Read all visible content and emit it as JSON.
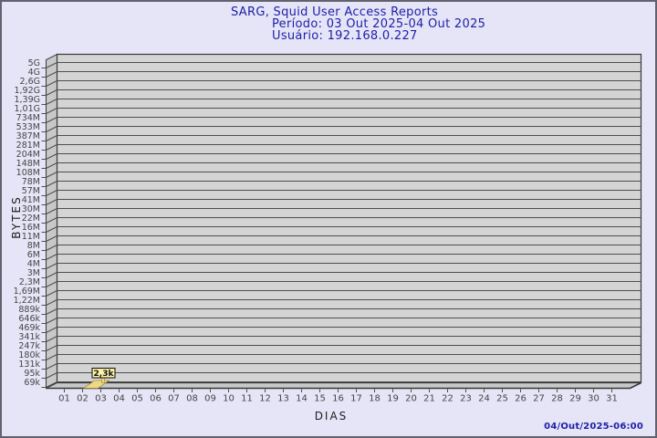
{
  "page": {
    "background_color": "#e5e5f7",
    "border_color": "#62626e"
  },
  "header": {
    "title": "SARG, Squid User Access Reports",
    "period": "Período: 03 Out 2025-04 Out 2025",
    "user": "Usuário: 192.168.0.227",
    "text_color": "#1e1ea8"
  },
  "footer": {
    "timestamp": "04/Out/2025-06:00"
  },
  "chart_data": {
    "type": "bar",
    "title": "SARG, Squid User Access Reports",
    "subtitle1": "Período: 03 Out 2025-04 Out 2025",
    "subtitle2": "Usuário: 192.168.0.227",
    "xlabel": "DIAS",
    "ylabel": "BYTES",
    "x_ticks": [
      "01",
      "02",
      "03",
      "04",
      "05",
      "06",
      "07",
      "08",
      "09",
      "10",
      "11",
      "12",
      "13",
      "14",
      "15",
      "16",
      "17",
      "18",
      "19",
      "20",
      "21",
      "22",
      "23",
      "24",
      "25",
      "26",
      "27",
      "28",
      "29",
      "30",
      "31"
    ],
    "y_ticks": [
      "5G",
      "4G",
      "2,6G",
      "1,92G",
      "1,39G",
      "1,01G",
      "734M",
      "533M",
      "387M",
      "281M",
      "204M",
      "148M",
      "108M",
      "78M",
      "57M",
      "41M",
      "30M",
      "22M",
      "16M",
      "11M",
      "8M",
      "6M",
      "4M",
      "3M",
      "2,3M",
      "1,69M",
      "1,22M",
      "889k",
      "646k",
      "469k",
      "341k",
      "247k",
      "180k",
      "131k",
      "95k",
      "69k"
    ],
    "y_scale": "logarithmic, top 5G down to 69k",
    "grid": true,
    "points": [
      {
        "day": "03",
        "label": "2,3k",
        "value_bytes": 2300
      }
    ],
    "colors": {
      "plot_face": "#d4d4d4",
      "plot_side": "#c8c8c8",
      "grid_line": "#4e4e4e",
      "plot_border": "#383838",
      "tick_text": "#454545",
      "bar_fill": "#eed886",
      "bar_stroke": "#857622",
      "tooltip_fill": "#fdf3a5",
      "tooltip_stroke": "#1a1a1a",
      "tooltip_text": "#111111"
    }
  }
}
